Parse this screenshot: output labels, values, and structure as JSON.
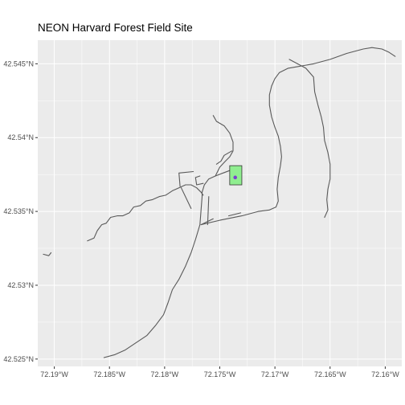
{
  "title": "NEON Harvard Forest Field Site",
  "colors": {
    "panel": "#ebebeb",
    "grid": "#ffffff",
    "road": "#595959",
    "plot_fill": "#90ee90",
    "plot_stroke": "#333333",
    "tower_point": "#7b3fd1"
  },
  "chart_data": {
    "type": "map",
    "xlim": [
      -72.1915,
      -72.1585
    ],
    "ylim": [
      42.5245,
      42.5466
    ],
    "x_ticks": [
      {
        "value": -72.19,
        "label": "72.19°W"
      },
      {
        "value": -72.185,
        "label": "72.185°W"
      },
      {
        "value": -72.18,
        "label": "72.18°W"
      },
      {
        "value": -72.175,
        "label": "72.175°W"
      },
      {
        "value": -72.17,
        "label": "72.17°W"
      },
      {
        "value": -72.165,
        "label": "72.165°W"
      },
      {
        "value": -72.16,
        "label": "72.16°W"
      }
    ],
    "y_ticks": [
      {
        "value": 42.525,
        "label": "42.525°N"
      },
      {
        "value": 42.53,
        "label": "42.53°N"
      },
      {
        "value": 42.535,
        "label": "42.535°N"
      },
      {
        "value": 42.54,
        "label": "42.54°N"
      },
      {
        "value": 42.545,
        "label": "42.545°N"
      }
    ],
    "grid": true,
    "roads": [
      [
        [
          -72.1687,
          42.5453
        ],
        [
          -72.1672,
          42.5447
        ],
        [
          -72.1665,
          42.5441
        ],
        [
          -72.1664,
          42.5431
        ],
        [
          -72.1661,
          42.5422
        ],
        [
          -72.1658,
          42.5414
        ],
        [
          -72.1656,
          42.5407
        ],
        [
          -72.1655,
          42.5398
        ],
        [
          -72.1652,
          42.539
        ],
        [
          -72.165,
          42.5382
        ],
        [
          -72.165,
          42.5372
        ],
        [
          -72.1652,
          42.5365
        ],
        [
          -72.1653,
          42.5358
        ],
        [
          -72.1652,
          42.5351
        ],
        [
          -72.1655,
          42.5346
        ]
      ],
      [
        [
          -72.1591,
          42.5455
        ],
        [
          -72.1597,
          42.5458
        ],
        [
          -72.1603,
          42.546
        ],
        [
          -72.1612,
          42.5461
        ],
        [
          -72.162,
          42.546
        ],
        [
          -72.1635,
          42.5457
        ],
        [
          -72.165,
          42.5453
        ],
        [
          -72.1665,
          42.545
        ],
        [
          -72.168,
          42.5448
        ],
        [
          -72.1688,
          42.5447
        ],
        [
          -72.1696,
          42.5444
        ],
        [
          -72.17,
          42.544
        ],
        [
          -72.1703,
          42.5435
        ],
        [
          -72.1705,
          42.5429
        ],
        [
          -72.1705,
          42.5422
        ],
        [
          -72.1703,
          42.5414
        ],
        [
          -72.17,
          42.5407
        ],
        [
          -72.1697,
          42.5401
        ],
        [
          -72.1695,
          42.5394
        ],
        [
          -72.1694,
          42.5387
        ],
        [
          -72.1695,
          42.5381
        ],
        [
          -72.1697,
          42.5373
        ],
        [
          -72.1698,
          42.5365
        ],
        [
          -72.1697,
          42.5357
        ],
        [
          -72.1699,
          42.5353
        ]
      ],
      [
        [
          -72.1699,
          42.5353
        ],
        [
          -72.1705,
          42.5351
        ],
        [
          -72.1715,
          42.535
        ],
        [
          -72.173,
          42.5347
        ],
        [
          -72.175,
          42.5344
        ],
        [
          -72.1767,
          42.5341
        ]
      ],
      [
        [
          -72.1767,
          42.5341
        ],
        [
          -72.1756,
          42.5345
        ]
      ],
      [
        [
          -72.1742,
          42.5347
        ],
        [
          -72.1731,
          42.5349
        ]
      ],
      [
        [
          -72.1903,
          42.5322
        ],
        [
          -72.1905,
          42.532
        ],
        [
          -72.191,
          42.5321
        ]
      ],
      [
        [
          -72.187,
          42.533
        ],
        [
          -72.1864,
          42.5332
        ],
        [
          -72.1861,
          42.5337
        ],
        [
          -72.1857,
          42.5341
        ],
        [
          -72.1853,
          42.5342
        ],
        [
          -72.1849,
          42.5346
        ],
        [
          -72.1843,
          42.5347
        ],
        [
          -72.1838,
          42.5347
        ],
        [
          -72.1832,
          42.5349
        ],
        [
          -72.1828,
          42.5353
        ],
        [
          -72.1822,
          42.5354
        ],
        [
          -72.1817,
          42.5357
        ],
        [
          -72.1811,
          42.5358
        ],
        [
          -72.1805,
          42.536
        ],
        [
          -72.1799,
          42.5361
        ],
        [
          -72.1793,
          42.5364
        ],
        [
          -72.1787,
          42.5366
        ],
        [
          -72.1781,
          42.5368
        ],
        [
          -72.1776,
          42.5368
        ],
        [
          -72.1771,
          42.5366
        ],
        [
          -72.1767,
          42.5363
        ],
        [
          -72.1765,
          42.5361
        ]
      ],
      [
        [
          -72.1785,
          42.5366
        ],
        [
          -72.1776,
          42.5352
        ]
      ],
      [
        [
          -72.1855,
          42.5251
        ],
        [
          -72.1845,
          42.5253
        ],
        [
          -72.1836,
          42.5256
        ],
        [
          -72.1826,
          42.5261
        ],
        [
          -72.1816,
          42.5266
        ],
        [
          -72.1808,
          42.5273
        ],
        [
          -72.1801,
          42.528
        ],
        [
          -72.1797,
          42.5288
        ],
        [
          -72.1793,
          42.5297
        ],
        [
          -72.1787,
          42.5304
        ],
        [
          -72.1781,
          42.5313
        ],
        [
          -72.1776,
          42.5322
        ],
        [
          -72.1772,
          42.5331
        ],
        [
          -72.1768,
          42.5341
        ],
        [
          -72.1767,
          42.5351
        ],
        [
          -72.1766,
          42.536
        ],
        [
          -72.1766,
          42.5363
        ],
        [
          -72.1764,
          42.5368
        ],
        [
          -72.176,
          42.5372
        ],
        [
          -72.1754,
          42.5374
        ],
        [
          -72.1747,
          42.5376
        ],
        [
          -72.174,
          42.5378
        ],
        [
          -72.1735,
          42.5379
        ]
      ],
      [
        [
          -72.1754,
          42.5374
        ],
        [
          -72.175,
          42.538
        ],
        [
          -72.1745,
          42.5384
        ],
        [
          -72.1741,
          42.5387
        ],
        [
          -72.1738,
          42.5391
        ],
        [
          -72.1738,
          42.5397
        ],
        [
          -72.1741,
          42.5403
        ],
        [
          -72.1746,
          42.5408
        ],
        [
          -72.1753,
          42.5411
        ],
        [
          -72.1756,
          42.5415
        ]
      ],
      [
        [
          -72.1739,
          42.5391
        ],
        [
          -72.1746,
          42.5388
        ],
        [
          -72.1749,
          42.5384
        ],
        [
          -72.1753,
          42.5382
        ]
      ],
      [
        [
          -72.1786,
          42.5367
        ],
        [
          -72.1787,
          42.5376
        ],
        [
          -72.1774,
          42.5377
        ]
      ],
      [
        [
          -72.1768,
          42.5374
        ],
        [
          -72.1772,
          42.5373
        ],
        [
          -72.1771,
          42.5368
        ],
        [
          -72.1765,
          42.5369
        ]
      ],
      [
        [
          -72.1761,
          42.5341
        ],
        [
          -72.176,
          42.536
        ]
      ]
    ],
    "plot": {
      "x": [
        -72.1741,
        -72.173
      ],
      "y": [
        42.5368,
        42.5381
      ]
    },
    "tower": {
      "x": -72.1736,
      "y": 42.5373
    }
  }
}
